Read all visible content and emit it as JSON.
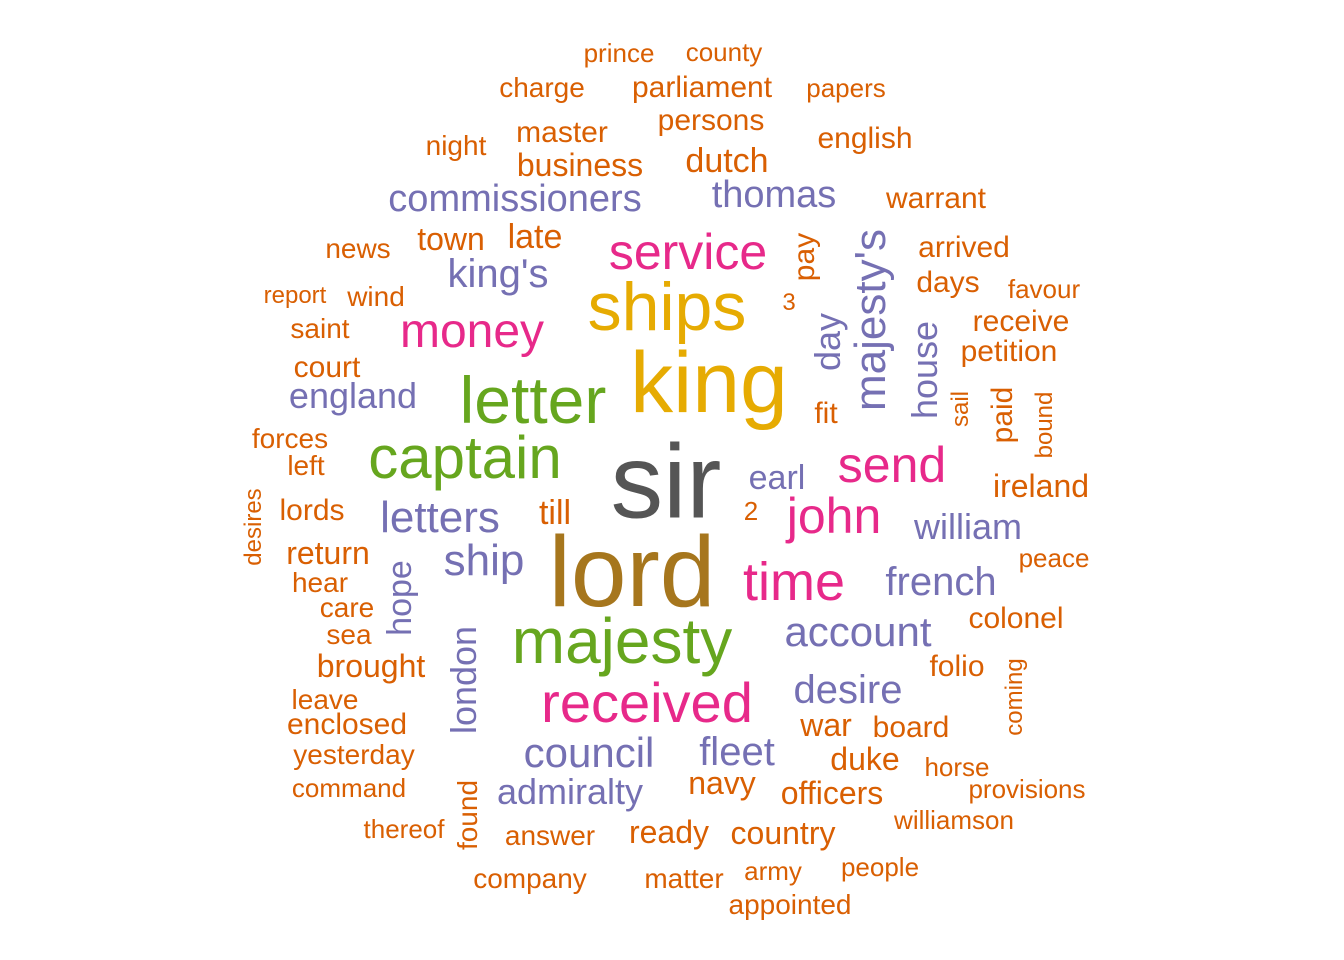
{
  "colors": {
    "darkgray": "#555555",
    "brown": "#A6761D",
    "gold": "#E6AB02",
    "green": "#66A61E",
    "magenta": "#E7298A",
    "purple": "#7570B3",
    "orange": "#D95F02"
  },
  "words": [
    {
      "text": "sir",
      "color": "darkgray",
      "rank": 1
    },
    {
      "text": "lord",
      "color": "brown",
      "rank": 2
    },
    {
      "text": "king",
      "color": "gold",
      "rank": 3
    },
    {
      "text": "ships",
      "color": "gold",
      "rank": 4
    },
    {
      "text": "letter",
      "color": "green",
      "rank": 5
    },
    {
      "text": "majesty",
      "color": "green",
      "rank": 6
    },
    {
      "text": "captain",
      "color": "green",
      "rank": 7
    },
    {
      "text": "received",
      "color": "magenta",
      "rank": 8
    },
    {
      "text": "time",
      "color": "magenta",
      "rank": 9
    },
    {
      "text": "service",
      "color": "magenta",
      "rank": 10
    },
    {
      "text": "send",
      "color": "magenta",
      "rank": 11
    },
    {
      "text": "john",
      "color": "magenta",
      "rank": 12
    },
    {
      "text": "money",
      "color": "magenta",
      "rank": 13
    },
    {
      "text": "majesty's",
      "color": "purple",
      "rank": 14
    },
    {
      "text": "letters",
      "color": "purple",
      "rank": 15
    },
    {
      "text": "ship",
      "color": "purple",
      "rank": 16
    },
    {
      "text": "account",
      "color": "purple",
      "rank": 17
    },
    {
      "text": "council",
      "color": "purple",
      "rank": 18
    },
    {
      "text": "king's",
      "color": "purple",
      "rank": 19
    },
    {
      "text": "desire",
      "color": "purple",
      "rank": 20
    },
    {
      "text": "fleet",
      "color": "purple",
      "rank": 21
    },
    {
      "text": "french",
      "color": "purple",
      "rank": 22
    },
    {
      "text": "commissioners",
      "color": "purple",
      "rank": 23
    },
    {
      "text": "thomas",
      "color": "purple",
      "rank": 24
    },
    {
      "text": "admiralty",
      "color": "purple",
      "rank": 25
    },
    {
      "text": "london",
      "color": "purple",
      "rank": 26
    },
    {
      "text": "england",
      "color": "purple",
      "rank": 27
    },
    {
      "text": "william",
      "color": "purple",
      "rank": 28
    },
    {
      "text": "house",
      "color": "purple",
      "rank": 29
    },
    {
      "text": "day",
      "color": "purple",
      "rank": 30
    },
    {
      "text": "earl",
      "color": "purple",
      "rank": 31
    },
    {
      "text": "hope",
      "color": "purple",
      "rank": 32
    },
    {
      "text": "dutch",
      "color": "orange",
      "rank": 33
    },
    {
      "text": "business",
      "color": "orange",
      "rank": 34
    },
    {
      "text": "master",
      "color": "orange",
      "rank": 35
    },
    {
      "text": "persons",
      "color": "orange",
      "rank": 36
    },
    {
      "text": "parliament",
      "color": "orange",
      "rank": 37
    },
    {
      "text": "english",
      "color": "orange",
      "rank": 38
    },
    {
      "text": "warrant",
      "color": "orange",
      "rank": 39
    },
    {
      "text": "late",
      "color": "orange",
      "rank": 40
    },
    {
      "text": "town",
      "color": "orange",
      "rank": 41
    },
    {
      "text": "pay",
      "color": "orange",
      "rank": 42
    },
    {
      "text": "arrived",
      "color": "orange",
      "rank": 43
    },
    {
      "text": "days",
      "color": "orange",
      "rank": 44
    },
    {
      "text": "ireland",
      "color": "orange",
      "rank": 45
    },
    {
      "text": "till",
      "color": "orange",
      "rank": 46
    },
    {
      "text": "navy",
      "color": "orange",
      "rank": 47
    },
    {
      "text": "officers",
      "color": "orange",
      "rank": 48
    },
    {
      "text": "duke",
      "color": "orange",
      "rank": 49
    },
    {
      "text": "war",
      "color": "orange",
      "rank": 50
    },
    {
      "text": "board",
      "color": "orange",
      "rank": 51
    },
    {
      "text": "ready",
      "color": "orange",
      "rank": 52
    },
    {
      "text": "country",
      "color": "orange",
      "rank": 53
    },
    {
      "text": "petition",
      "color": "orange",
      "rank": 54
    },
    {
      "text": "receive",
      "color": "orange",
      "rank": 55
    },
    {
      "text": "colonel",
      "color": "orange",
      "rank": 56
    },
    {
      "text": "folio",
      "color": "orange",
      "rank": 57
    },
    {
      "text": "brought",
      "color": "orange",
      "rank": 58
    },
    {
      "text": "return",
      "color": "orange",
      "rank": 59
    },
    {
      "text": "lords",
      "color": "orange",
      "rank": 60
    },
    {
      "text": "court",
      "color": "orange",
      "rank": 61
    },
    {
      "text": "enclosed",
      "color": "orange",
      "rank": 62
    },
    {
      "text": "yesterday",
      "color": "orange",
      "rank": 63
    },
    {
      "text": "answer",
      "color": "orange",
      "rank": 64
    },
    {
      "text": "charge",
      "color": "orange",
      "rank": 65
    },
    {
      "text": "paid",
      "color": "orange",
      "rank": 66
    },
    {
      "text": "fit",
      "color": "orange",
      "rank": 67
    },
    {
      "text": "news",
      "color": "orange",
      "rank": 68
    },
    {
      "text": "wind",
      "color": "orange",
      "rank": 69
    },
    {
      "text": "saint",
      "color": "orange",
      "rank": 70
    },
    {
      "text": "forces",
      "color": "orange",
      "rank": 71
    },
    {
      "text": "hear",
      "color": "orange",
      "rank": 72
    },
    {
      "text": "care",
      "color": "orange",
      "rank": 73
    },
    {
      "text": "sea",
      "color": "orange",
      "rank": 74
    },
    {
      "text": "left",
      "color": "orange",
      "rank": 75
    },
    {
      "text": "leave",
      "color": "orange",
      "rank": 76
    },
    {
      "text": "command",
      "color": "orange",
      "rank": 77
    },
    {
      "text": "thereof",
      "color": "orange",
      "rank": 78
    },
    {
      "text": "found",
      "color": "orange",
      "rank": 79
    },
    {
      "text": "company",
      "color": "orange",
      "rank": 80
    },
    {
      "text": "matter",
      "color": "orange",
      "rank": 81
    },
    {
      "text": "army",
      "color": "orange",
      "rank": 82
    },
    {
      "text": "appointed",
      "color": "orange",
      "rank": 83
    },
    {
      "text": "people",
      "color": "orange",
      "rank": 84
    },
    {
      "text": "williamson",
      "color": "orange",
      "rank": 85
    },
    {
      "text": "provisions",
      "color": "orange",
      "rank": 86
    },
    {
      "text": "horse",
      "color": "orange",
      "rank": 87
    },
    {
      "text": "coming",
      "color": "orange",
      "rank": 88
    },
    {
      "text": "peace",
      "color": "orange",
      "rank": 89
    },
    {
      "text": "sail",
      "color": "orange",
      "rank": 90
    },
    {
      "text": "bound",
      "color": "orange",
      "rank": 91
    },
    {
      "text": "favour",
      "color": "orange",
      "rank": 92
    },
    {
      "text": "report",
      "color": "orange",
      "rank": 93
    },
    {
      "text": "night",
      "color": "orange",
      "rank": 94
    },
    {
      "text": "papers",
      "color": "orange",
      "rank": 95
    },
    {
      "text": "prince",
      "color": "orange",
      "rank": 96
    },
    {
      "text": "county",
      "color": "orange",
      "rank": 97
    },
    {
      "text": "desires",
      "color": "orange",
      "rank": 98
    },
    {
      "text": "2",
      "color": "orange",
      "rank": 99
    },
    {
      "text": "3",
      "color": "orange",
      "rank": 100
    }
  ]
}
